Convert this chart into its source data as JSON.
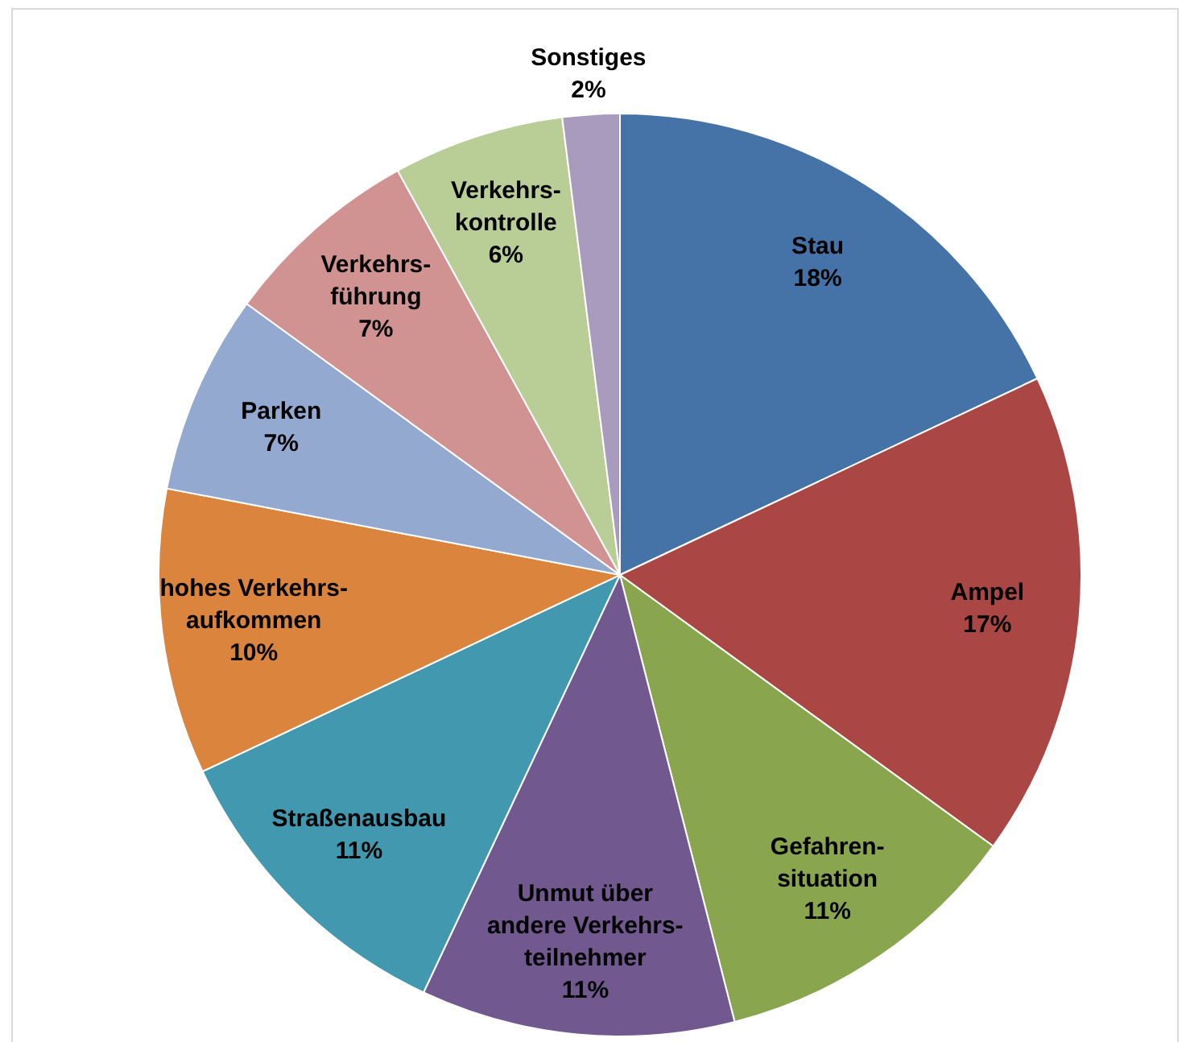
{
  "chart_data": {
    "type": "pie",
    "categories": [
      "Stau",
      "Ampel",
      "Gefahren-\nsituation",
      "Unmut über\nandere Verkehrs-\nteilnehmer",
      "Straßenausbau",
      "hohes Verkehrs-\naufkommen",
      "Parken",
      "Verkehrs-\nführung",
      "Verkehrs-\nkontrolle",
      "Sonstiges"
    ],
    "values": [
      18,
      17,
      11,
      11,
      11,
      10,
      7,
      7,
      6,
      2
    ],
    "value_labels": [
      "18%",
      "17%",
      "11%",
      "11%",
      "11%",
      "10%",
      "7%",
      "7%",
      "6%",
      "2%"
    ],
    "colors": [
      "#4572a7",
      "#aa4643",
      "#89a54e",
      "#71588f",
      "#4198af",
      "#db843d",
      "#93a9cf",
      "#d19392",
      "#b9cd96",
      "#a99bbd"
    ],
    "legend": false
  }
}
